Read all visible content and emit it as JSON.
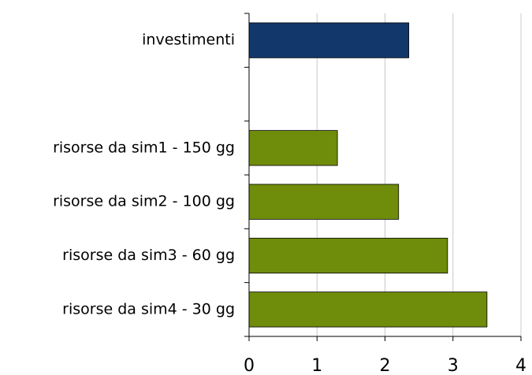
{
  "chart_data": {
    "type": "hbar",
    "categories": [
      "investimenti",
      null,
      "risorse da sim1 - 150 gg",
      "risorse da sim2 - 100 gg",
      "risorse da sim3 - 60 gg",
      "risorse da sim4 - 30 gg"
    ],
    "values": [
      2.35,
      null,
      1.3,
      2.2,
      2.92,
      3.5
    ],
    "colors": [
      "#12376b",
      null,
      "#6f8c0a",
      "#6f8c0a",
      "#6f8c0a",
      "#6f8c0a"
    ],
    "xlim": [
      0,
      4
    ],
    "xticks": [
      0,
      1,
      2,
      3,
      4
    ],
    "grid": true
  }
}
